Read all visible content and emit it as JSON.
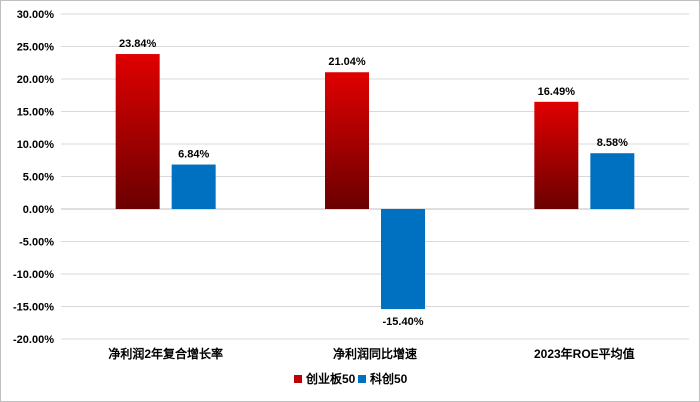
{
  "chart_data": {
    "type": "bar",
    "categories": [
      "净利润2年复合增长率",
      "净利润同比增速",
      "2023年ROE平均值"
    ],
    "series": [
      {
        "name": "创业板50",
        "values": [
          23.84,
          21.04,
          16.49
        ],
        "color": "#c00000",
        "gradient": [
          "#e00000",
          "#6b0000"
        ]
      },
      {
        "name": "科创50",
        "values": [
          6.84,
          -15.4,
          8.58
        ],
        "color": "#0070c0"
      }
    ],
    "data_labels": [
      [
        "23.84%",
        "21.04%",
        "16.49%"
      ],
      [
        "6.84%",
        "-15.40%",
        "8.58%"
      ]
    ],
    "yticks": [
      "30.00%",
      "25.00%",
      "20.00%",
      "15.00%",
      "10.00%",
      "5.00%",
      "0.00%",
      "-5.00%",
      "-10.00%",
      "-15.00%",
      "-20.00%"
    ],
    "ylim": [
      -20,
      30
    ],
    "grid": true,
    "legend_position": "bottom"
  }
}
